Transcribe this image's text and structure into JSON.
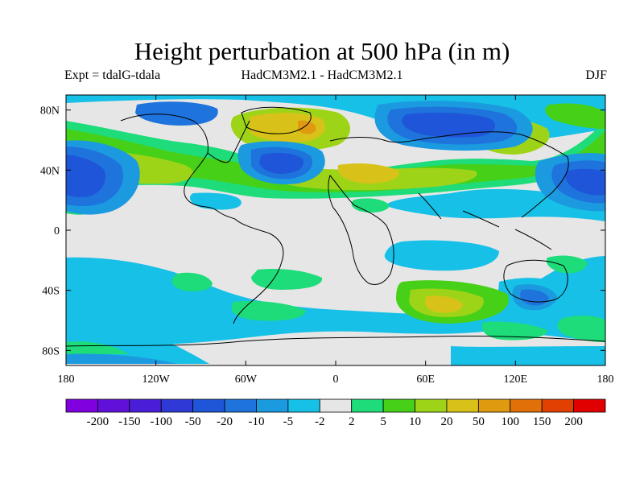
{
  "chart_data": {
    "type": "contour-map",
    "title": "Height perturbation at 500 hPa (in m)",
    "experiment": "Expt = tdalG-tdala",
    "model_comparison": "HadCM3M2.1 - HadCM3M2.1",
    "season": "DJF",
    "x_axis": {
      "ticks": [
        "180",
        "120W",
        "60W",
        "0",
        "60E",
        "120E",
        "180"
      ],
      "range": [
        -180,
        180
      ]
    },
    "y_axis": {
      "ticks": [
        "80N",
        "40N",
        "0",
        "40S",
        "80S"
      ],
      "range": [
        -90,
        90
      ]
    },
    "colorbar": {
      "levels": [
        "-200",
        "-150",
        "-100",
        "-50",
        "-20",
        "-10",
        "-5",
        "-2",
        "2",
        "5",
        "10",
        "20",
        "50",
        "100",
        "150",
        "200"
      ],
      "colors": [
        "#8000e0",
        "#6010d8",
        "#4a1ed8",
        "#2f3ad6",
        "#1f55d8",
        "#1e73dc",
        "#1c9ae0",
        "#16c0e6",
        "#e6e6e6",
        "#1edc7a",
        "#46d018",
        "#9ed418",
        "#d8c21a",
        "#e09a10",
        "#e27008",
        "#e24000",
        "#e00000"
      ]
    }
  }
}
